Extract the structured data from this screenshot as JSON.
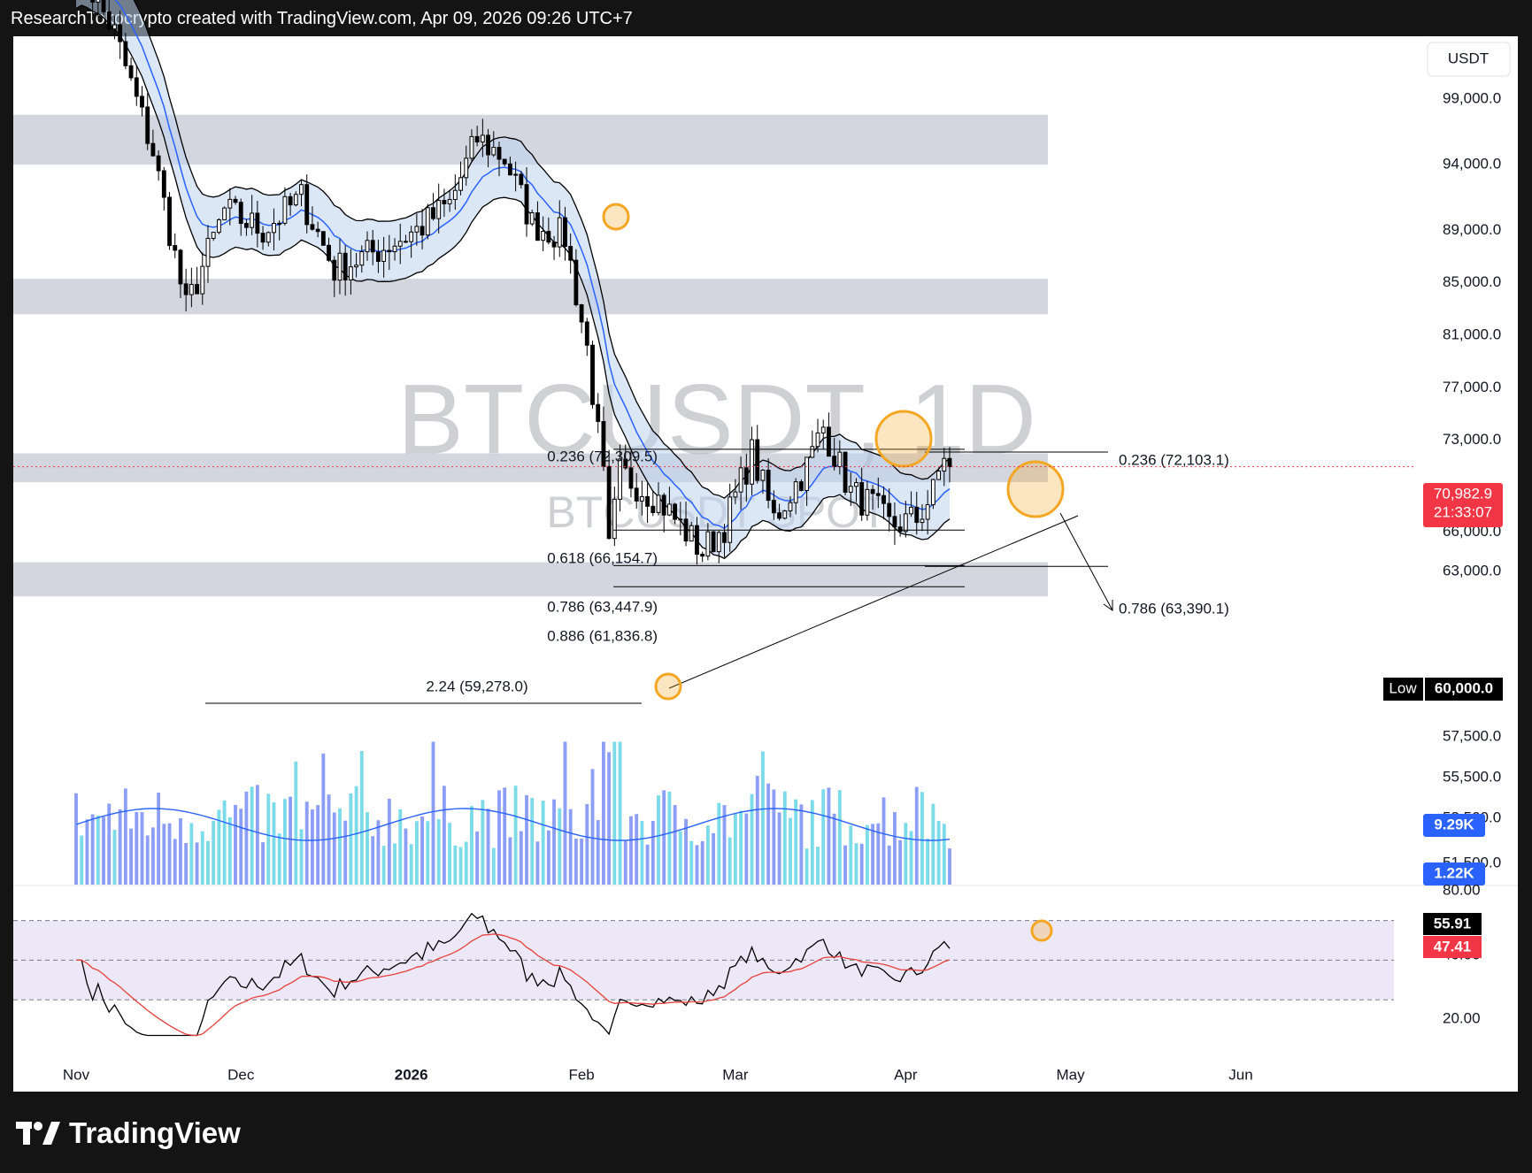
{
  "header": {
    "text": "ResearchTokocrypto created with TradingView.com, Apr 09, 2026 09:26 UTC+7"
  },
  "footer": {
    "brand": "TradingView",
    "logo_icon": "tradingview-logo-icon"
  },
  "colors": {
    "candle": "#000000",
    "ema": "#2962ff",
    "band": "#bfd4ee",
    "zone": "#d1d4dc",
    "vol_up": "#7cdbe8",
    "vol_down": "#8c9ef5",
    "vol_ma": "#2962ff",
    "rsi": "#000000",
    "rsi_ma": "#e8403a",
    "rsi_band": "#ece8f7",
    "highlight": "#f5a623",
    "price_label": "#f23645",
    "axis_text": "#131722"
  },
  "chart_data": {
    "type": "candlestick",
    "symbol": "BTCUSDT",
    "interval": "1D",
    "watermark": {
      "main": "BTCUSDT, 1D",
      "sub": "BTCUSDT SPOT"
    },
    "currency_label": "USDT",
    "price_axis_labels": [
      "99,000.0",
      "94,000.0",
      "89,000.0",
      "85,000.0",
      "81,000.0",
      "77,000.0",
      "73,000.0",
      "69,000.0",
      "66,000.0",
      "63,000.0",
      "57,500.0",
      "55,500.0",
      "53,500.0",
      "51,500.0"
    ],
    "time_axis_labels": [
      "Nov",
      "Dec",
      "2026",
      "Feb",
      "Mar",
      "Apr",
      "May",
      "Jun"
    ],
    "last_price": {
      "value": "70,982.9",
      "countdown": "21:33:07"
    },
    "low_marker": {
      "label": "Low",
      "value": "60,000.0"
    },
    "volume": {
      "ma_label": "9.29K",
      "last_label": "1.22K"
    },
    "rsi": {
      "axis_labels": [
        "80.00",
        "40.00",
        "20.00"
      ],
      "value": "55.91",
      "ma_value": "47.41",
      "upper": 70,
      "lower": 30
    },
    "fib_labels": {
      "f236_left": "0.236 (72,309.5)",
      "f618_left": "0.618 (66,154.7)",
      "f786_left": "0.786 (63,447.9)",
      "f886_left": "0.886 (61,836.8)",
      "ext224": "2.24 (59,278.0)",
      "f236_right": "0.236 (72,103.1)",
      "f786_right": "0.786 (63,390.1)"
    },
    "zones": [
      [
        94000,
        97800
      ],
      [
        82600,
        85300
      ],
      [
        69800,
        72000
      ],
      [
        61100,
        63700
      ]
    ],
    "keypoints": [
      [
        "2025-11-01",
        109500
      ],
      [
        "2025-11-08",
        104000
      ],
      [
        "2025-11-15",
        95000
      ],
      [
        "2025-11-21",
        83000
      ],
      [
        "2025-11-28",
        90500
      ],
      [
        "2025-12-05",
        89000
      ],
      [
        "2025-12-12",
        91500
      ],
      [
        "2025-12-18",
        86000
      ],
      [
        "2025-12-26",
        87500
      ],
      [
        "2026-01-02",
        89000
      ],
      [
        "2026-01-08",
        91000
      ],
      [
        "2026-01-13",
        96000
      ],
      [
        "2026-01-18",
        94500
      ],
      [
        "2026-01-23",
        89500
      ],
      [
        "2026-01-29",
        88500
      ],
      [
        "2026-02-02",
        80000
      ],
      [
        "2026-02-05",
        70000
      ],
      [
        "2026-02-06",
        64500
      ],
      [
        "2026-02-08",
        70500
      ],
      [
        "2026-02-15",
        68500
      ],
      [
        "2026-02-23",
        64500
      ],
      [
        "2026-02-27",
        66500
      ],
      [
        "2026-03-04",
        72000
      ],
      [
        "2026-03-08",
        67000
      ],
      [
        "2026-03-14",
        71000
      ],
      [
        "2026-03-17",
        74000
      ],
      [
        "2026-03-22",
        69000
      ],
      [
        "2026-03-26",
        68000
      ],
      [
        "2026-03-29",
        66500
      ],
      [
        "2026-04-03",
        67000
      ],
      [
        "2026-04-06",
        69000
      ],
      [
        "2026-04-08",
        72000
      ],
      [
        "2026-04-09",
        70983
      ]
    ]
  }
}
